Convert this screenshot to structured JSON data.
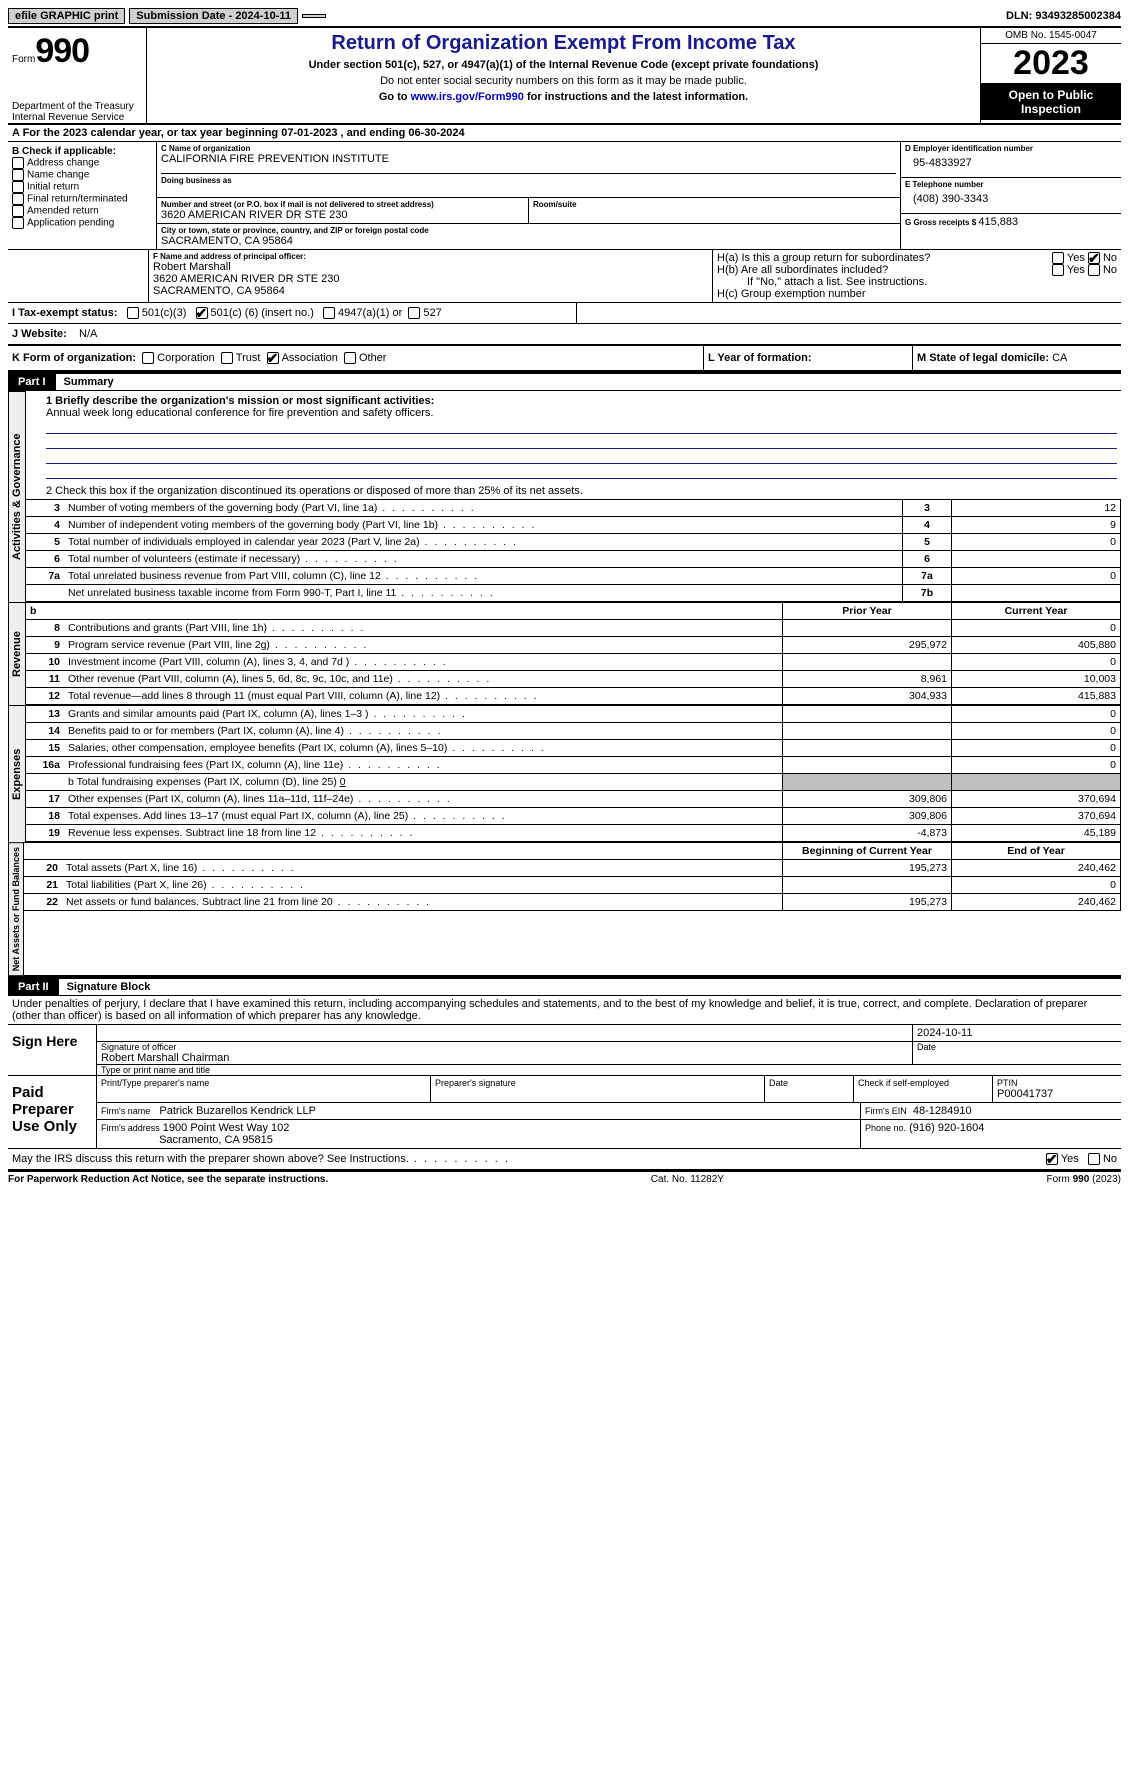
{
  "topbar": {
    "efile": "efile GRAPHIC print",
    "submission_label": "Submission Date - 2024-10-11",
    "dln_label": "DLN: 93493285002384"
  },
  "header": {
    "form_prefix": "Form",
    "form_number": "990",
    "dept": "Department of the Treasury",
    "irs": "Internal Revenue Service",
    "title": "Return of Organization Exempt From Income Tax",
    "subtitle": "Under section 501(c), 527, or 4947(a)(1) of the Internal Revenue Code (except private foundations)",
    "warn": "Do not enter social security numbers on this form as it may be made public.",
    "goto_pre": "Go to ",
    "goto_link": "www.irs.gov/Form990",
    "goto_post": " for instructions and the latest information.",
    "omb": "OMB No. 1545-0047",
    "year": "2023",
    "inspect": "Open to Public Inspection"
  },
  "A": {
    "text_pre": "A For the 2023 calendar year, or tax year beginning ",
    "begin": "07-01-2023",
    "mid": " , and ending ",
    "end": "06-30-2024"
  },
  "B": {
    "label": "B Check if applicable:",
    "opts": [
      "Address change",
      "Name change",
      "Initial return",
      "Final return/terminated",
      "Amended return",
      "Application pending"
    ]
  },
  "C": {
    "name_lbl": "C Name of organization",
    "name": "CALIFORNIA FIRE PREVENTION INSTITUTE",
    "dba_lbl": "Doing business as",
    "addr_lbl": "Number and street (or P.O. box if mail is not delivered to street address)",
    "addr": "3620 AMERICAN RIVER DR STE 230",
    "room_lbl": "Room/suite",
    "city_lbl": "City or town, state or province, country, and ZIP or foreign postal code",
    "city": "SACRAMENTO, CA  95864"
  },
  "D": {
    "lbl": "D Employer identification number",
    "val": "95-4833927"
  },
  "E": {
    "lbl": "E Telephone number",
    "val": "(408) 390-3343"
  },
  "G": {
    "lbl": "G Gross receipts $ ",
    "val": "415,883"
  },
  "F": {
    "lbl": "F  Name and address of principal officer:",
    "name": "Robert Marshall",
    "addr1": "3620 AMERICAN RIVER DR STE 230",
    "addr2": "SACRAMENTO, CA  95864"
  },
  "H": {
    "a": "H(a)  Is this a group return for subordinates?",
    "b": "H(b)  Are all subordinates included?",
    "b_note": "If \"No,\" attach a list. See instructions.",
    "c": "H(c)  Group exemption number",
    "yes": "Yes",
    "no": "No"
  },
  "I": {
    "lbl": "I  Tax-exempt status:",
    "o1": "501(c)(3)",
    "o2_pre": "501(c) (",
    "o2_val": "6",
    "o2_post": ") (insert no.)",
    "o3": "4947(a)(1) or",
    "o4": "527"
  },
  "J": {
    "lbl": "J  Website:",
    "val": "N/A"
  },
  "K": {
    "lbl": "K Form of organization:",
    "o1": "Corporation",
    "o2": "Trust",
    "o3": "Association",
    "o4": "Other"
  },
  "L": {
    "lbl": "L Year of formation:"
  },
  "M": {
    "lbl": "M State of legal domicile: ",
    "val": "CA"
  },
  "partI": {
    "hdr": "Part I",
    "title": "Summary"
  },
  "gov": {
    "tab": "Activities & Governance",
    "l1_lbl": "1  Briefly describe the organization's mission or most significant activities:",
    "l1_val": "Annual week long educational conference for fire prevention and safety officers.",
    "l2": "2   Check this box         if the organization discontinued its operations or disposed of more than 25% of its net assets.",
    "rows": [
      {
        "n": "3",
        "t": "Number of voting members of the governing body (Part VI, line 1a)",
        "k": "3",
        "v": "12"
      },
      {
        "n": "4",
        "t": "Number of independent voting members of the governing body (Part VI, line 1b)",
        "k": "4",
        "v": "9"
      },
      {
        "n": "5",
        "t": "Total number of individuals employed in calendar year 2023 (Part V, line 2a)",
        "k": "5",
        "v": "0"
      },
      {
        "n": "6",
        "t": "Total number of volunteers (estimate if necessary)",
        "k": "6",
        "v": ""
      },
      {
        "n": "7a",
        "t": "Total unrelated business revenue from Part VIII, column (C), line 12",
        "k": "7a",
        "v": "0"
      },
      {
        "n": "",
        "t": "Net unrelated business taxable income from Form 990-T, Part I, line 11",
        "k": "7b",
        "v": ""
      }
    ]
  },
  "rev": {
    "tab": "Revenue",
    "hdr_b": "b",
    "hdr_prior": "Prior Year",
    "hdr_curr": "Current Year",
    "rows": [
      {
        "n": "8",
        "t": "Contributions and grants (Part VIII, line 1h)",
        "p": "",
        "c": "0"
      },
      {
        "n": "9",
        "t": "Program service revenue (Part VIII, line 2g)",
        "p": "295,972",
        "c": "405,880"
      },
      {
        "n": "10",
        "t": "Investment income (Part VIII, column (A), lines 3, 4, and 7d )",
        "p": "",
        "c": "0"
      },
      {
        "n": "11",
        "t": "Other revenue (Part VIII, column (A), lines 5, 6d, 8c, 9c, 10c, and 11e)",
        "p": "8,961",
        "c": "10,003"
      },
      {
        "n": "12",
        "t": "Total revenue—add lines 8 through 11 (must equal Part VIII, column (A), line 12)",
        "p": "304,933",
        "c": "415,883"
      }
    ]
  },
  "exp": {
    "tab": "Expenses",
    "rows": [
      {
        "n": "13",
        "t": "Grants and similar amounts paid (Part IX, column (A), lines 1–3 )",
        "p": "",
        "c": "0"
      },
      {
        "n": "14",
        "t": "Benefits paid to or for members (Part IX, column (A), line 4)",
        "p": "",
        "c": "0"
      },
      {
        "n": "15",
        "t": "Salaries, other compensation, employee benefits (Part IX, column (A), lines 5–10)",
        "p": "",
        "c": "0"
      },
      {
        "n": "16a",
        "t": "Professional fundraising fees (Part IX, column (A), line 11e)",
        "p": "",
        "c": "0"
      }
    ],
    "l16b_pre": "b  Total fundraising expenses (Part IX, column (D), line 25) ",
    "l16b_val": "0",
    "rows2": [
      {
        "n": "17",
        "t": "Other expenses (Part IX, column (A), lines 11a–11d, 11f–24e)",
        "p": "309,806",
        "c": "370,694"
      },
      {
        "n": "18",
        "t": "Total expenses. Add lines 13–17 (must equal Part IX, column (A), line 25)",
        "p": "309,806",
        "c": "370,694"
      },
      {
        "n": "19",
        "t": "Revenue less expenses. Subtract line 18 from line 12",
        "p": "-4,873",
        "c": "45,189"
      }
    ]
  },
  "net": {
    "tab": "Net Assets or Fund Balances",
    "hdr_begin": "Beginning of Current Year",
    "hdr_end": "End of Year",
    "rows": [
      {
        "n": "20",
        "t": "Total assets (Part X, line 16)",
        "p": "195,273",
        "c": "240,462"
      },
      {
        "n": "21",
        "t": "Total liabilities (Part X, line 26)",
        "p": "",
        "c": "0"
      },
      {
        "n": "22",
        "t": "Net assets or fund balances. Subtract line 21 from line 20",
        "p": "195,273",
        "c": "240,462"
      }
    ]
  },
  "partII": {
    "hdr": "Part II",
    "title": "Signature Block"
  },
  "perjury": "Under penalties of perjury, I declare that I have examined this return, including accompanying schedules and statements, and to the best of my knowledge and belief, it is true, correct, and complete. Declaration of preparer (other than officer) is based on all information of which preparer has any knowledge.",
  "sign": {
    "here": "Sign Here",
    "sig_lbl": "Signature of officer",
    "date_lbl": "Date",
    "date_val": "2024-10-11",
    "name": "Robert Marshall  Chairman",
    "type_lbl": "Type or print name and title"
  },
  "prep": {
    "here": "Paid Preparer Use Only",
    "name_lbl": "Print/Type preparer's name",
    "sig_lbl": "Preparer's signature",
    "date_lbl": "Date",
    "self_lbl": "Check         if self-employed",
    "ptin_lbl": "PTIN",
    "ptin_val": "P00041737",
    "firm_name_lbl": "Firm's name",
    "firm_name": "Patrick Buzarellos Kendrick LLP",
    "firm_ein_lbl": "Firm's EIN",
    "firm_ein": "48-1284910",
    "firm_addr_lbl": "Firm's address",
    "firm_addr1": "1900 Point West Way 102",
    "firm_addr2": "Sacramento, CA  95815",
    "phone_lbl": "Phone no.",
    "phone": "(916) 920-1604"
  },
  "discuss": {
    "q": "May the IRS discuss this return with the preparer shown above? See Instructions.",
    "yes": "Yes",
    "no": "No"
  },
  "footer": {
    "left": "For Paperwork Reduction Act Notice, see the separate instructions.",
    "mid": "Cat. No. 11282Y",
    "right_pre": "Form ",
    "right_num": "990",
    "right_post": " (2023)"
  }
}
